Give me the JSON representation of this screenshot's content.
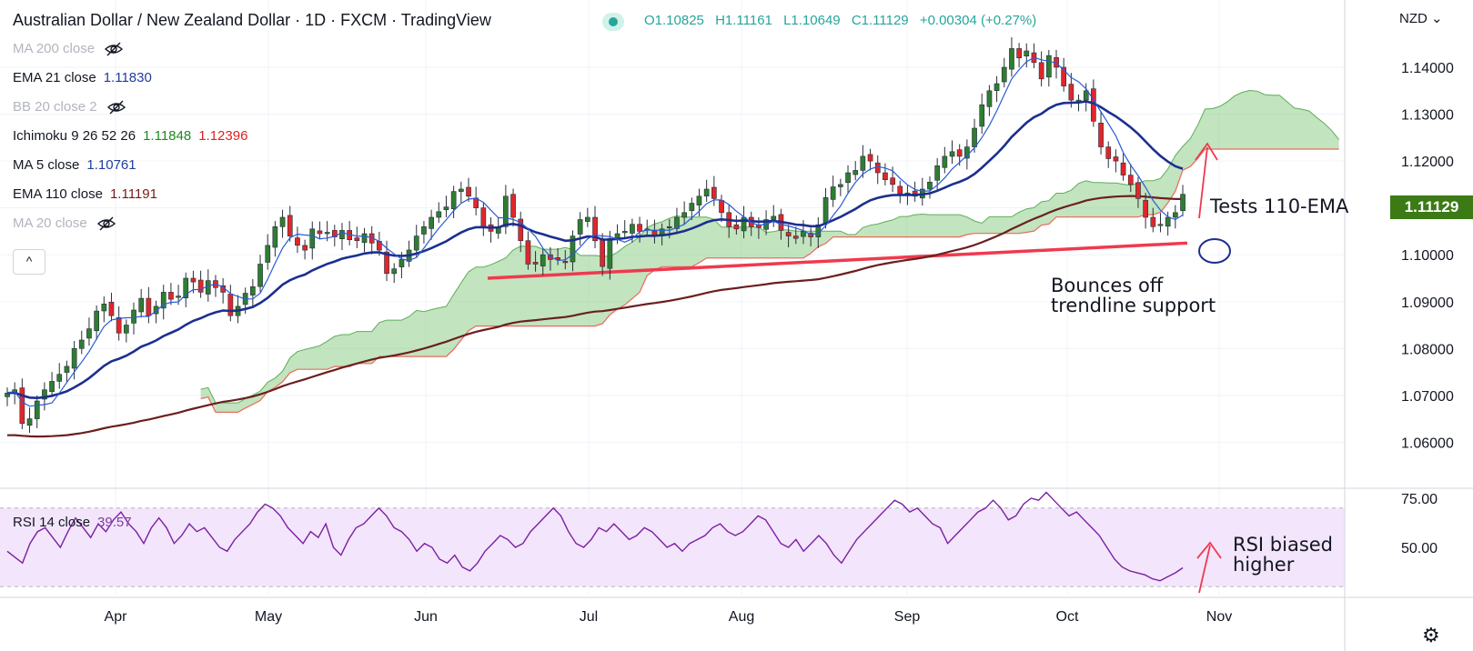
{
  "header": {
    "title": "Australian Dollar / New Zealand Dollar · 1D · FXCM · TradingView",
    "ohlc": {
      "open": "O1.10825",
      "high": "H1.11161",
      "low": "L1.10649",
      "close": "C1.11129",
      "change": "+0.00304 (+0.27%)"
    }
  },
  "currency_label": "NZD",
  "last_price_tag": "1.11129",
  "indicators": [
    {
      "label": "MA 200 close",
      "value": "",
      "hidden": true
    },
    {
      "label": "EMA 21 close",
      "value": "1.11830",
      "value_color": "#1f3d9c",
      "hidden": false
    },
    {
      "label": "BB 20 close 2",
      "value": "",
      "hidden": true
    },
    {
      "label": "Ichimoku 9 26 52 26",
      "value": "1.11848",
      "value_color": "#1e8a1e",
      "value2": "1.12396",
      "value2_color": "#e02020",
      "hidden": false
    },
    {
      "label": "MA 5 close",
      "value": "1.10761",
      "value_color": "#1f3d9c",
      "hidden": false
    },
    {
      "label": "EMA 110 close",
      "value": "1.11191",
      "value_color": "#7a1a1a",
      "hidden": false
    },
    {
      "label": "MA 20 close",
      "value": "",
      "hidden": true
    }
  ],
  "collapse_button": "^",
  "rsi_legend": {
    "label": "RSI 14 close",
    "value": "39.57"
  },
  "annotations": {
    "ema_test": "Tests 110-EMA",
    "bounce_line1": "Bounces off",
    "bounce_line2": "trendline support",
    "rsi_line1": "RSI biased",
    "rsi_line2": "higher"
  },
  "colors": {
    "up": "#2e7d32",
    "down": "#e0262b",
    "ema21": "#1c2f8f",
    "ma5": "#2a5bd7",
    "ema110": "#6b1f1f",
    "cloud": "#8fce8a",
    "cloud_edge_red": "#e86a5a",
    "trendline": "#f0394e",
    "rsi_line": "#7b1fa2",
    "rsi_band": "#f3e5fb"
  },
  "chart_data": [
    {
      "type": "candlestick",
      "title": "Australian Dollar / New Zealand Dollar",
      "ylim": [
        1.05,
        1.15
      ],
      "yticks": [
        "1.14000",
        "1.13000",
        "1.12000",
        "1.11000",
        "1.10000",
        "1.09000",
        "1.08000",
        "1.07000",
        "1.06000"
      ],
      "ytick_values": [
        1.14,
        1.13,
        1.12,
        1.11,
        1.1,
        1.09,
        1.08,
        1.07,
        1.06
      ],
      "xticks": [
        "Apr",
        "May",
        "Jun",
        "Jul",
        "Aug",
        "Sep",
        "Oct",
        "Nov"
      ],
      "close_series": [
        1.0705,
        1.0712,
        1.064,
        1.065,
        1.0688,
        1.0712,
        1.073,
        1.0745,
        1.0762,
        1.08,
        1.0818,
        1.0842,
        1.088,
        1.0895,
        1.087,
        1.0833,
        1.085,
        1.0882,
        1.0907,
        1.087,
        1.089,
        1.092,
        1.0905,
        1.0912,
        1.095,
        1.0942,
        1.092,
        1.0945,
        1.093,
        1.092,
        1.087,
        1.089,
        1.0918,
        1.0932,
        1.098,
        1.102,
        1.106,
        1.108,
        1.104,
        1.102,
        1.101,
        1.1055,
        1.1045,
        1.1048,
        1.1038,
        1.1052,
        1.1032,
        1.103,
        1.1045,
        1.1025,
        1.101,
        1.096,
        1.097,
        1.099,
        1.101,
        1.104,
        1.106,
        1.108,
        1.1092,
        1.1102,
        1.1135,
        1.114,
        1.1125,
        1.11,
        1.106,
        1.105,
        1.106,
        1.1125,
        1.108,
        1.103,
        1.098,
        1.098,
        1.1,
        1.099,
        1.099,
        1.0985,
        1.104,
        1.1075,
        1.108,
        1.103,
        1.0975,
        1.1035,
        1.1045,
        1.105,
        1.1065,
        1.105,
        1.1055,
        1.104,
        1.1055,
        1.106,
        1.108,
        1.109,
        1.111,
        1.1125,
        1.114,
        1.112,
        1.109,
        1.106,
        1.1055,
        1.108,
        1.106,
        1.1058,
        1.1075,
        1.1082,
        1.1052,
        1.104,
        1.1035,
        1.105,
        1.1038,
        1.1064,
        1.1122,
        1.1145,
        1.115,
        1.1175,
        1.118,
        1.121,
        1.12,
        1.1175,
        1.116,
        1.115,
        1.113,
        1.1132,
        1.1125,
        1.114,
        1.1155,
        1.119,
        1.121,
        1.122,
        1.121,
        1.123,
        1.127,
        1.132,
        1.135,
        1.1365,
        1.14,
        1.144,
        1.142,
        1.1435,
        1.141,
        1.1375,
        1.1425,
        1.14,
        1.136,
        1.133,
        1.133,
        1.135,
        1.1285,
        1.123,
        1.1205,
        1.12,
        1.117,
        1.115,
        1.112,
        1.108,
        1.106,
        1.1065,
        1.108,
        1.109,
        1.1129
      ],
      "ema110_endpoints": [
        1.0615,
        1.1119
      ],
      "trendline_endpoints": [
        1.095,
        1.1025
      ]
    },
    {
      "type": "line",
      "title": "RSI 14 close",
      "ylim": [
        30,
        80
      ],
      "yticks": [
        "75.00",
        "50.00"
      ],
      "ytick_values": [
        75,
        50
      ],
      "band": [
        30,
        70
      ],
      "values": [
        48,
        45,
        42,
        52,
        58,
        60,
        55,
        50,
        58,
        65,
        60,
        55,
        62,
        58,
        64,
        68,
        62,
        58,
        52,
        60,
        65,
        60,
        52,
        56,
        62,
        58,
        60,
        55,
        50,
        48,
        54,
        58,
        62,
        68,
        72,
        70,
        66,
        60,
        56,
        52,
        58,
        55,
        62,
        50,
        46,
        54,
        60,
        62,
        66,
        70,
        66,
        60,
        58,
        54,
        48,
        52,
        50,
        44,
        42,
        46,
        40,
        38,
        42,
        48,
        52,
        56,
        54,
        50,
        52,
        58,
        62,
        66,
        70,
        66,
        58,
        52,
        50,
        54,
        60,
        58,
        62,
        58,
        54,
        56,
        60,
        58,
        54,
        50,
        52,
        48,
        52,
        54,
        56,
        60,
        62,
        58,
        56,
        58,
        62,
        66,
        64,
        58,
        52,
        50,
        54,
        48,
        52,
        56,
        52,
        46,
        42,
        48,
        54,
        58,
        62,
        66,
        70,
        74,
        72,
        68,
        70,
        66,
        62,
        60,
        52,
        56,
        60,
        64,
        68,
        70,
        74,
        70,
        64,
        66,
        72,
        75,
        74,
        78,
        74,
        70,
        66,
        68,
        64,
        60,
        56,
        50,
        44,
        40,
        38,
        37,
        36,
        34,
        33,
        35,
        37,
        39.57
      ]
    }
  ]
}
